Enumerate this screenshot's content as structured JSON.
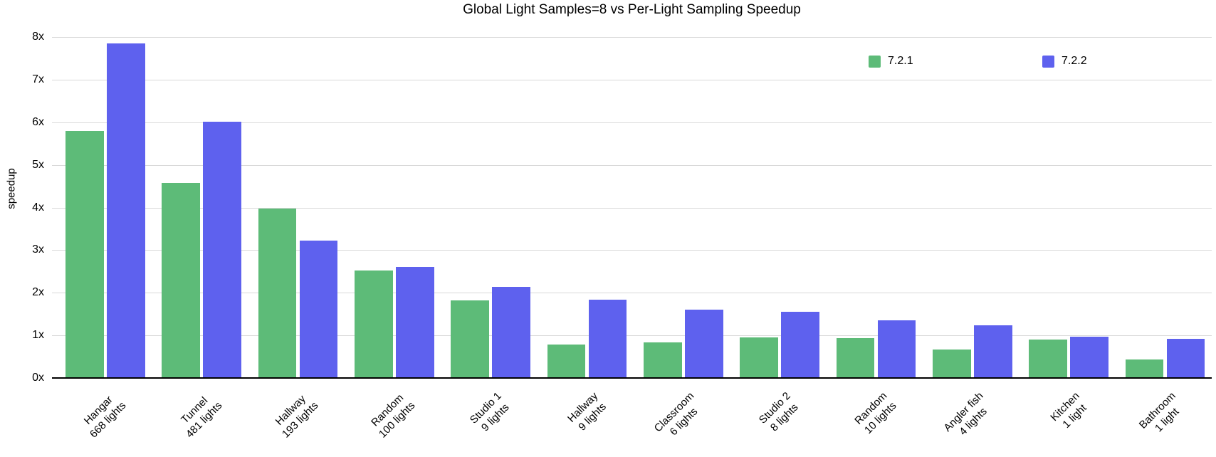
{
  "chart_data": {
    "type": "bar",
    "title": "Global Light Samples=8 vs Per-Light Sampling Speedup",
    "ylabel": "speedup",
    "ylim": [
      0,
      8
    ],
    "y_tick_labels": [
      "0x",
      "1x",
      "2x",
      "3x",
      "4x",
      "5x",
      "6x",
      "7x",
      "8x"
    ],
    "grid": true,
    "legend_position": "top-right",
    "categories": [
      {
        "name": "Hangar",
        "sub": "668 lights"
      },
      {
        "name": "Tunnel",
        "sub": "481 lights"
      },
      {
        "name": "Hallway",
        "sub": "193 lights"
      },
      {
        "name": "Random",
        "sub": "100 lights"
      },
      {
        "name": "Studio 1",
        "sub": "9 lights"
      },
      {
        "name": "Hallway",
        "sub": "9 lights"
      },
      {
        "name": "Classroom",
        "sub": "6 lights"
      },
      {
        "name": "Studio 2",
        "sub": "8 lights"
      },
      {
        "name": "Random",
        "sub": "10 lights"
      },
      {
        "name": "Angler fish",
        "sub": "4 lights"
      },
      {
        "name": "Kitchen",
        "sub": "1 light"
      },
      {
        "name": "Bathroom",
        "sub": "1 light"
      }
    ],
    "series": [
      {
        "name": "7.2.1",
        "color": "#5dbb78",
        "values": [
          5.8,
          4.58,
          3.97,
          2.52,
          1.82,
          0.79,
          0.84,
          0.96,
          0.94,
          0.67,
          0.9,
          0.44
        ]
      },
      {
        "name": "7.2.2",
        "color": "#5e61ee",
        "values": [
          7.85,
          6.01,
          3.22,
          2.61,
          2.13,
          1.83,
          1.61,
          1.56,
          1.35,
          1.23,
          0.97,
          0.92
        ]
      }
    ],
    "colors": {
      "gridline": "#d9d9d9",
      "axis_line": "#000000",
      "text": "#000000",
      "background": "#ffffff"
    }
  }
}
